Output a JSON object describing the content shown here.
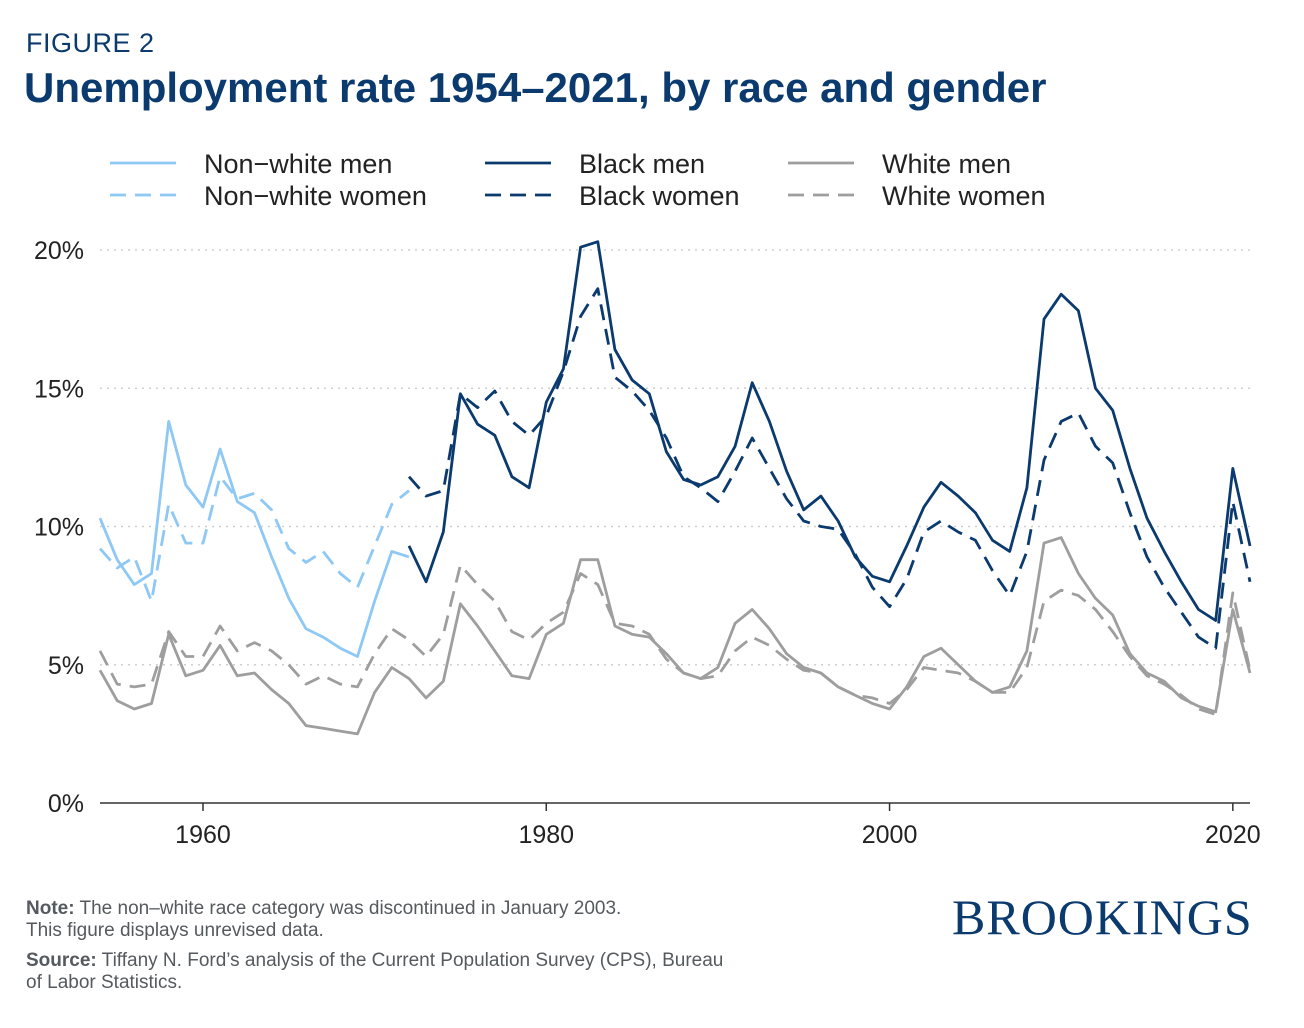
{
  "header": {
    "kicker": "FIGURE 2",
    "title": "Unemployment rate 1954–2021, by race and gender"
  },
  "footer": {
    "note_label": "Note:",
    "note_text": " The non–white race category was discontinued in January 2003.",
    "note_text2": "This figure displays unrevised data.",
    "source_label": "Source:",
    "source_text": " Tiffany N. Ford’s analysis of the Current Population Survey (CPS), Bureau",
    "source_text2": "of Labor Statistics.",
    "logo": "BROOKINGS"
  },
  "chart_data": {
    "type": "line",
    "title": "Unemployment rate 1954–2021, by race and gender",
    "xlabel": "",
    "ylabel": "",
    "xlim": [
      1954,
      2021
    ],
    "ylim": [
      0,
      20
    ],
    "x_ticks": [
      1960,
      1980,
      2000,
      2020
    ],
    "y_ticks": [
      0,
      5,
      10,
      15,
      20
    ],
    "y_tick_labels": [
      "0%",
      "5%",
      "10%",
      "15%",
      "20%"
    ],
    "grid": "horizontal dotted",
    "legend_position": "top",
    "series": [
      {
        "name": "Non−white men",
        "color": "#8ec8f5",
        "dash": "solid",
        "x": [
          1954,
          1955,
          1956,
          1957,
          1958,
          1959,
          1960,
          1961,
          1962,
          1963,
          1964,
          1965,
          1966,
          1967,
          1968,
          1969,
          1970,
          1971,
          1972
        ],
        "y": [
          10.3,
          8.8,
          7.9,
          8.3,
          13.8,
          11.5,
          10.7,
          12.8,
          10.9,
          10.5,
          8.9,
          7.4,
          6.3,
          6.0,
          5.6,
          5.3,
          7.3,
          9.1,
          8.9
        ]
      },
      {
        "name": "Non−white women",
        "color": "#8ec8f5",
        "dash": "dashed",
        "x": [
          1954,
          1955,
          1956,
          1957,
          1958,
          1959,
          1960,
          1961,
          1962,
          1963,
          1964,
          1965,
          1966,
          1967,
          1968,
          1969,
          1970,
          1971,
          1972
        ],
        "y": [
          9.2,
          8.5,
          8.9,
          7.3,
          10.8,
          9.4,
          9.4,
          11.8,
          11.0,
          11.2,
          10.6,
          9.2,
          8.7,
          9.1,
          8.3,
          7.8,
          9.3,
          10.8,
          11.3
        ]
      },
      {
        "name": "Black men",
        "color": "#0b3a6e",
        "dash": "solid",
        "x": [
          1972,
          1973,
          1974,
          1975,
          1976,
          1977,
          1978,
          1979,
          1980,
          1981,
          1982,
          1983,
          1984,
          1985,
          1986,
          1987,
          1988,
          1989,
          1990,
          1991,
          1992,
          1993,
          1994,
          1995,
          1996,
          1997,
          1998,
          1999,
          2000,
          2001,
          2002,
          2003,
          2004,
          2005,
          2006,
          2007,
          2008,
          2009,
          2010,
          2011,
          2012,
          2013,
          2014,
          2015,
          2016,
          2017,
          2018,
          2019,
          2020,
          2021
        ],
        "y": [
          9.3,
          8.0,
          9.8,
          14.8,
          13.7,
          13.3,
          11.8,
          11.4,
          14.5,
          15.7,
          20.1,
          20.3,
          16.4,
          15.3,
          14.8,
          12.7,
          11.7,
          11.5,
          11.8,
          12.9,
          15.2,
          13.8,
          12.0,
          10.6,
          11.1,
          10.2,
          8.9,
          8.2,
          8.0,
          9.3,
          10.7,
          11.6,
          11.1,
          10.5,
          9.5,
          9.1,
          11.4,
          17.5,
          18.4,
          17.8,
          15.0,
          14.2,
          12.1,
          10.3,
          9.1,
          8.0,
          7.0,
          6.6,
          12.1,
          9.3
        ]
      },
      {
        "name": "Black women",
        "color": "#0b3a6e",
        "dash": "dashed",
        "x": [
          1972,
          1973,
          1974,
          1975,
          1976,
          1977,
          1978,
          1979,
          1980,
          1981,
          1982,
          1983,
          1984,
          1985,
          1986,
          1987,
          1988,
          1989,
          1990,
          1991,
          1992,
          1993,
          1994,
          1995,
          1996,
          1997,
          1998,
          1999,
          2000,
          2001,
          2002,
          2003,
          2004,
          2005,
          2006,
          2007,
          2008,
          2009,
          2010,
          2011,
          2012,
          2013,
          2014,
          2015,
          2016,
          2017,
          2018,
          2019,
          2020,
          2021
        ],
        "y": [
          11.8,
          11.1,
          11.3,
          14.8,
          14.3,
          14.9,
          13.8,
          13.3,
          14.0,
          15.6,
          17.6,
          18.6,
          15.4,
          14.9,
          14.2,
          13.2,
          11.8,
          11.4,
          10.9,
          12.0,
          13.2,
          12.1,
          11.0,
          10.2,
          10.0,
          9.9,
          9.0,
          7.8,
          7.1,
          8.1,
          9.8,
          10.2,
          9.8,
          9.5,
          8.4,
          7.5,
          9.1,
          12.4,
          13.8,
          14.1,
          12.9,
          12.3,
          10.5,
          8.9,
          7.8,
          6.9,
          6.0,
          5.6,
          10.9,
          8.0
        ]
      },
      {
        "name": "White men",
        "color": "#9e9e9e",
        "dash": "solid",
        "x": [
          1954,
          1955,
          1956,
          1957,
          1958,
          1959,
          1960,
          1961,
          1962,
          1963,
          1964,
          1965,
          1966,
          1967,
          1968,
          1969,
          1970,
          1971,
          1972,
          1973,
          1974,
          1975,
          1976,
          1977,
          1978,
          1979,
          1980,
          1981,
          1982,
          1983,
          1984,
          1985,
          1986,
          1987,
          1988,
          1989,
          1990,
          1991,
          1992,
          1993,
          1994,
          1995,
          1996,
          1997,
          1998,
          1999,
          2000,
          2001,
          2002,
          2003,
          2004,
          2005,
          2006,
          2007,
          2008,
          2009,
          2010,
          2011,
          2012,
          2013,
          2014,
          2015,
          2016,
          2017,
          2018,
          2019,
          2020,
          2021
        ],
        "y": [
          4.8,
          3.7,
          3.4,
          3.6,
          6.1,
          4.6,
          4.8,
          5.7,
          4.6,
          4.7,
          4.1,
          3.6,
          2.8,
          2.7,
          2.6,
          2.5,
          4.0,
          4.9,
          4.5,
          3.8,
          4.4,
          7.2,
          6.4,
          5.5,
          4.6,
          4.5,
          6.1,
          6.5,
          8.8,
          8.8,
          6.4,
          6.1,
          6.0,
          5.4,
          4.7,
          4.5,
          4.9,
          6.5,
          7.0,
          6.3,
          5.4,
          4.9,
          4.7,
          4.2,
          3.9,
          3.6,
          3.4,
          4.2,
          5.3,
          5.6,
          5.0,
          4.4,
          4.0,
          4.2,
          5.5,
          9.4,
          9.6,
          8.3,
          7.4,
          6.8,
          5.4,
          4.7,
          4.4,
          3.8,
          3.5,
          3.3,
          7.0,
          4.7
        ]
      },
      {
        "name": "White women",
        "color": "#9e9e9e",
        "dash": "dashed",
        "x": [
          1954,
          1955,
          1956,
          1957,
          1958,
          1959,
          1960,
          1961,
          1962,
          1963,
          1964,
          1965,
          1966,
          1967,
          1968,
          1969,
          1970,
          1971,
          1972,
          1973,
          1974,
          1975,
          1976,
          1977,
          1978,
          1979,
          1980,
          1981,
          1982,
          1983,
          1984,
          1985,
          1986,
          1987,
          1988,
          1989,
          1990,
          1991,
          1992,
          1993,
          1994,
          1995,
          1996,
          1997,
          1998,
          1999,
          2000,
          2001,
          2002,
          2003,
          2004,
          2005,
          2006,
          2007,
          2008,
          2009,
          2010,
          2011,
          2012,
          2013,
          2014,
          2015,
          2016,
          2017,
          2018,
          2019,
          2020,
          2021
        ],
        "y": [
          5.5,
          4.3,
          4.2,
          4.3,
          6.2,
          5.3,
          5.3,
          6.4,
          5.5,
          5.8,
          5.5,
          5.0,
          4.3,
          4.6,
          4.3,
          4.2,
          5.4,
          6.3,
          5.9,
          5.3,
          6.1,
          8.6,
          7.9,
          7.3,
          6.2,
          5.9,
          6.5,
          6.9,
          8.3,
          7.9,
          6.5,
          6.4,
          6.1,
          5.2,
          4.7,
          4.5,
          4.6,
          5.5,
          6.0,
          5.7,
          5.2,
          4.8,
          4.7,
          4.2,
          3.9,
          3.8,
          3.6,
          4.1,
          4.9,
          4.8,
          4.7,
          4.4,
          4.0,
          4.0,
          4.9,
          7.3,
          7.7,
          7.5,
          7.0,
          6.2,
          5.3,
          4.6,
          4.3,
          3.9,
          3.4,
          3.2,
          7.6,
          4.8
        ]
      }
    ]
  }
}
